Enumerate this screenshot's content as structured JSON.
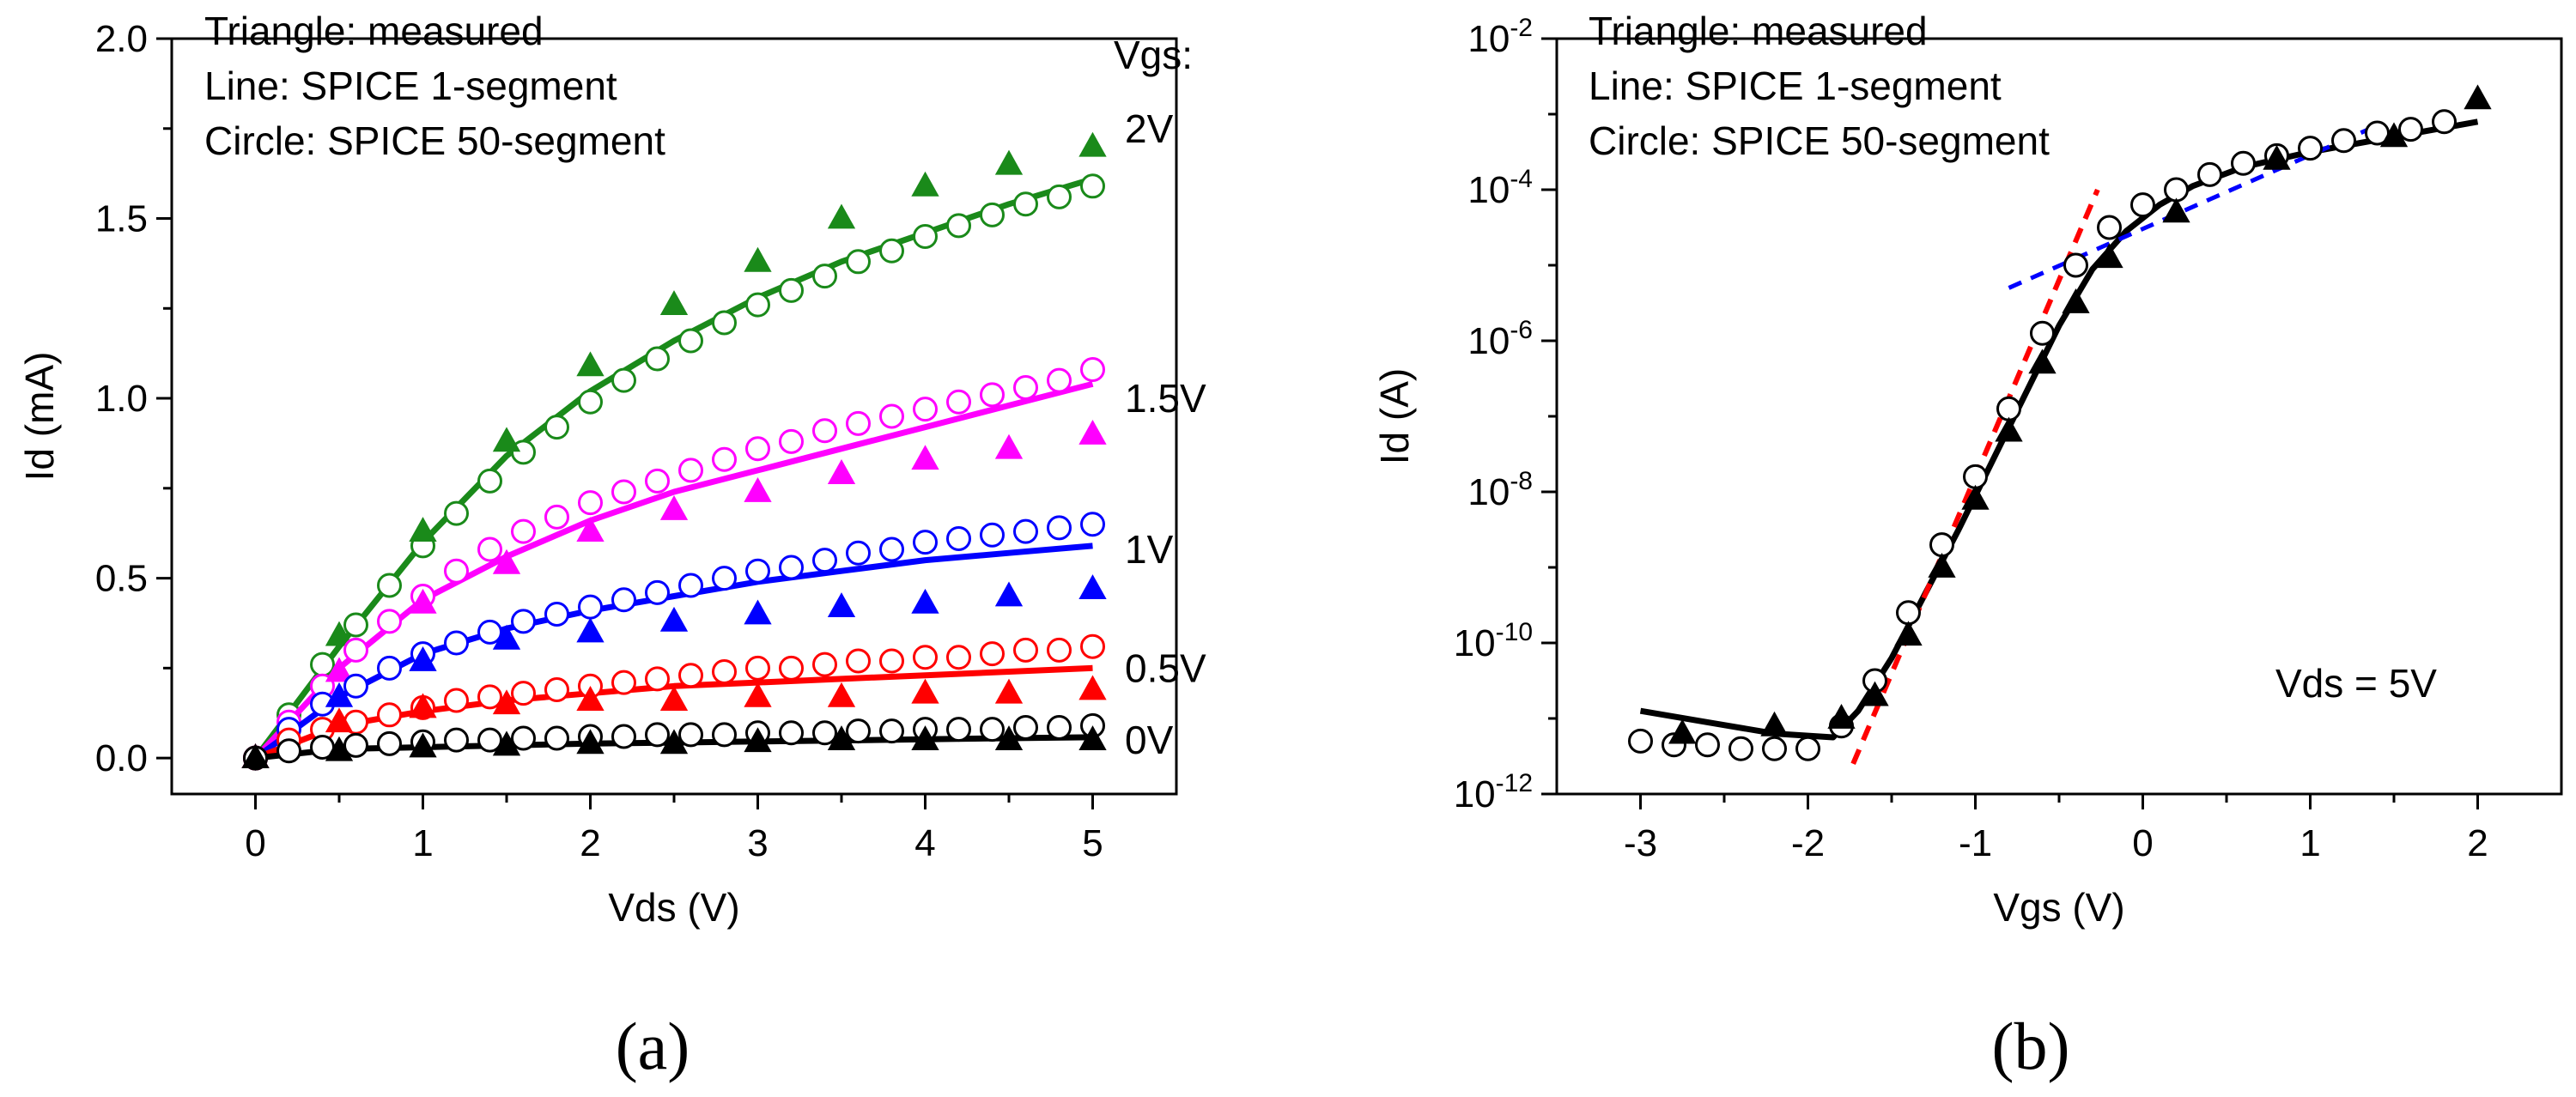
{
  "chart_data": [
    {
      "type": "line",
      "panel_label": "(a)",
      "xlabel": "Vds (V)",
      "ylabel": "Id (mA)",
      "xlim": [
        -0.5,
        5.5
      ],
      "ylim": [
        -0.1,
        2.0
      ],
      "xticks": [
        "0",
        "1",
        "2",
        "3",
        "4",
        "5"
      ],
      "yticks": [
        "0.0",
        "0.5",
        "1.0",
        "1.5",
        "2.0"
      ],
      "annotations": [
        "Triangle: measured",
        "Line: SPICE 1-segment",
        "Circle: SPICE 50-segment"
      ],
      "legend_title": "Vgs:",
      "series": [
        {
          "name": "2V",
          "color": "#1a8a1a",
          "measured": {
            "x": [
              0,
              0.5,
              1,
              1.5,
              2,
              2.5,
              3,
              3.5,
              4,
              4.5,
              5
            ],
            "y": [
              0,
              0.34,
              0.63,
              0.88,
              1.09,
              1.26,
              1.38,
              1.5,
              1.59,
              1.65,
              1.7
            ]
          },
          "line": {
            "x": [
              0,
              0.5,
              1,
              1.5,
              2,
              2.5,
              3,
              3.5,
              4,
              4.5,
              5
            ],
            "y": [
              0,
              0.31,
              0.6,
              0.84,
              1.02,
              1.16,
              1.28,
              1.38,
              1.46,
              1.54,
              1.61
            ]
          },
          "circles": {
            "x": [
              0,
              0.2,
              0.4,
              0.6,
              0.8,
              1,
              1.2,
              1.4,
              1.6,
              1.8,
              2,
              2.2,
              2.4,
              2.6,
              2.8,
              3,
              3.2,
              3.4,
              3.6,
              3.8,
              4,
              4.2,
              4.4,
              4.6,
              4.8,
              5
            ],
            "y": [
              0,
              0.12,
              0.26,
              0.37,
              0.48,
              0.59,
              0.68,
              0.77,
              0.85,
              0.92,
              0.99,
              1.05,
              1.11,
              1.16,
              1.21,
              1.26,
              1.3,
              1.34,
              1.38,
              1.41,
              1.45,
              1.48,
              1.51,
              1.54,
              1.56,
              1.59
            ]
          }
        },
        {
          "name": "1.5V",
          "color": "#ff00ff",
          "measured": {
            "x": [
              0,
              0.5,
              1,
              1.5,
              2,
              2.5,
              3,
              3.5,
              4,
              4.5,
              5
            ],
            "y": [
              0,
              0.24,
              0.43,
              0.54,
              0.63,
              0.69,
              0.74,
              0.79,
              0.83,
              0.86,
              0.9
            ]
          },
          "line": {
            "x": [
              0,
              0.5,
              1,
              1.5,
              2,
              2.5,
              3,
              3.5,
              4,
              4.5,
              5
            ],
            "y": [
              0,
              0.25,
              0.44,
              0.56,
              0.66,
              0.74,
              0.8,
              0.86,
              0.92,
              0.98,
              1.04
            ]
          },
          "circles": {
            "x": [
              0,
              0.2,
              0.4,
              0.6,
              0.8,
              1,
              1.2,
              1.4,
              1.6,
              1.8,
              2,
              2.2,
              2.4,
              2.6,
              2.8,
              3,
              3.2,
              3.4,
              3.6,
              3.8,
              4,
              4.2,
              4.4,
              4.6,
              4.8,
              5
            ],
            "y": [
              0,
              0.1,
              0.2,
              0.3,
              0.38,
              0.45,
              0.52,
              0.58,
              0.63,
              0.67,
              0.71,
              0.74,
              0.77,
              0.8,
              0.83,
              0.86,
              0.88,
              0.91,
              0.93,
              0.95,
              0.97,
              0.99,
              1.01,
              1.03,
              1.05,
              1.08
            ]
          }
        },
        {
          "name": "1V",
          "color": "#0000ff",
          "measured": {
            "x": [
              0,
              0.5,
              1,
              1.5,
              2,
              2.5,
              3,
              3.5,
              4,
              4.5,
              5
            ],
            "y": [
              0,
              0.17,
              0.27,
              0.33,
              0.35,
              0.38,
              0.4,
              0.42,
              0.43,
              0.45,
              0.47
            ]
          },
          "line": {
            "x": [
              0,
              0.5,
              1,
              1.5,
              2,
              2.5,
              3,
              3.5,
              4,
              4.5,
              5
            ],
            "y": [
              0,
              0.17,
              0.29,
              0.36,
              0.41,
              0.45,
              0.49,
              0.52,
              0.55,
              0.57,
              0.59
            ]
          },
          "circles": {
            "x": [
              0,
              0.2,
              0.4,
              0.6,
              0.8,
              1,
              1.2,
              1.4,
              1.6,
              1.8,
              2,
              2.2,
              2.4,
              2.6,
              2.8,
              3,
              3.2,
              3.4,
              3.6,
              3.8,
              4,
              4.2,
              4.4,
              4.6,
              4.8,
              5
            ],
            "y": [
              0,
              0.08,
              0.15,
              0.2,
              0.25,
              0.29,
              0.32,
              0.35,
              0.38,
              0.4,
              0.42,
              0.44,
              0.46,
              0.48,
              0.5,
              0.52,
              0.53,
              0.55,
              0.57,
              0.58,
              0.6,
              0.61,
              0.62,
              0.63,
              0.64,
              0.65
            ]
          }
        },
        {
          "name": "0.5V",
          "color": "#ff0000",
          "measured": {
            "x": [
              0,
              0.5,
              1,
              1.5,
              2,
              2.5,
              3,
              3.5,
              4,
              4.5,
              5
            ],
            "y": [
              0,
              0.1,
              0.14,
              0.15,
              0.16,
              0.16,
              0.17,
              0.17,
              0.18,
              0.18,
              0.19
            ]
          },
          "line": {
            "x": [
              0,
              0.5,
              1,
              1.5,
              2,
              2.5,
              3,
              3.5,
              4,
              4.5,
              5
            ],
            "y": [
              0,
              0.09,
              0.13,
              0.16,
              0.18,
              0.2,
              0.21,
              0.22,
              0.23,
              0.24,
              0.25
            ]
          },
          "circles": {
            "x": [
              0,
              0.2,
              0.4,
              0.6,
              0.8,
              1,
              1.2,
              1.4,
              1.6,
              1.8,
              2,
              2.2,
              2.4,
              2.6,
              2.8,
              3,
              3.2,
              3.4,
              3.6,
              3.8,
              4,
              4.2,
              4.4,
              4.6,
              4.8,
              5
            ],
            "y": [
              0,
              0.05,
              0.08,
              0.1,
              0.12,
              0.14,
              0.16,
              0.17,
              0.18,
              0.19,
              0.2,
              0.21,
              0.22,
              0.23,
              0.24,
              0.25,
              0.25,
              0.26,
              0.27,
              0.27,
              0.28,
              0.28,
              0.29,
              0.3,
              0.3,
              0.31
            ]
          }
        },
        {
          "name": "0V",
          "color": "#000000",
          "measured": {
            "x": [
              0,
              0.5,
              1,
              1.5,
              2,
              2.5,
              3,
              3.5,
              4,
              4.5,
              5
            ],
            "y": [
              0,
              0.02,
              0.03,
              0.035,
              0.04,
              0.04,
              0.045,
              0.05,
              0.05,
              0.05,
              0.05
            ]
          },
          "line": {
            "x": [
              0,
              0.5,
              1,
              1.5,
              2,
              2.5,
              3,
              3.5,
              4,
              4.5,
              5
            ],
            "y": [
              0,
              0.025,
              0.03,
              0.035,
              0.04,
              0.043,
              0.046,
              0.049,
              0.052,
              0.055,
              0.058
            ]
          },
          "circles": {
            "x": [
              0,
              0.2,
              0.4,
              0.6,
              0.8,
              1,
              1.2,
              1.4,
              1.6,
              1.8,
              2,
              2.2,
              2.4,
              2.6,
              2.8,
              3,
              3.2,
              3.4,
              3.6,
              3.8,
              4,
              4.2,
              4.4,
              4.6,
              4.8,
              5
            ],
            "y": [
              0,
              0.02,
              0.03,
              0.035,
              0.04,
              0.045,
              0.05,
              0.05,
              0.055,
              0.055,
              0.06,
              0.06,
              0.065,
              0.065,
              0.065,
              0.07,
              0.07,
              0.07,
              0.075,
              0.075,
              0.08,
              0.08,
              0.08,
              0.085,
              0.085,
              0.09
            ]
          }
        }
      ]
    },
    {
      "type": "line",
      "panel_label": "(b)",
      "xlabel": "Vgs (V)",
      "ylabel": "Id (A)",
      "yscale": "log",
      "xlim": [
        -3.5,
        2.5
      ],
      "ylim_exp": [
        -12,
        -2
      ],
      "xticks": [
        "-3",
        "-2",
        "-1",
        "0",
        "1",
        "2"
      ],
      "ytick_exponents": [
        "-12",
        "-10",
        "-8",
        "-6",
        "-4",
        "-2"
      ],
      "annotations": [
        "Triangle: measured",
        "Line: SPICE 1-segment",
        "Circle: SPICE 50-segment"
      ],
      "condition_label": "Vds = 5V",
      "line_black": {
        "x": [
          -3,
          -2.6,
          -2.2,
          -1.85,
          -1.7,
          -1.5,
          -1.3,
          -1.1,
          -0.9,
          -0.7,
          -0.5,
          -0.3,
          -0.1,
          0.1,
          0.3,
          0.6,
          1.0,
          1.5,
          2.0
        ],
        "log_y": [
          -10.9,
          -11.05,
          -11.2,
          -11.25,
          -10.9,
          -10.2,
          -9.35,
          -8.5,
          -7.6,
          -6.7,
          -5.8,
          -5.05,
          -4.55,
          -4.2,
          -3.95,
          -3.7,
          -3.5,
          -3.3,
          -3.1
        ]
      },
      "measured": {
        "x": [
          -2.75,
          -2.2,
          -1.8,
          -1.6,
          -1.4,
          -1.2,
          -1.0,
          -0.8,
          -0.6,
          -0.4,
          -0.2,
          0.2,
          0.8,
          1.5,
          2.0
        ],
        "log_y": [
          -11.2,
          -11.1,
          -11.0,
          -10.7,
          -9.9,
          -9.0,
          -8.1,
          -7.2,
          -6.3,
          -5.5,
          -4.9,
          -4.3,
          -3.6,
          -3.3,
          -2.8
        ]
      },
      "circles": {
        "x": [
          -3.0,
          -2.8,
          -2.6,
          -2.4,
          -2.2,
          -2.0,
          -1.8,
          -1.6,
          -1.4,
          -1.2,
          -1.0,
          -0.8,
          -0.6,
          -0.4,
          -0.2,
          0,
          0.2,
          0.4,
          0.6,
          0.8,
          1.0,
          1.2,
          1.4,
          1.6,
          1.8
        ],
        "log_y": [
          -11.3,
          -11.35,
          -11.35,
          -11.4,
          -11.4,
          -11.4,
          -11.1,
          -10.5,
          -9.6,
          -8.7,
          -7.8,
          -6.9,
          -5.9,
          -5.0,
          -4.5,
          -4.2,
          -4.0,
          -3.8,
          -3.65,
          -3.55,
          -3.45,
          -3.35,
          -3.25,
          -3.2,
          -3.1
        ]
      },
      "dashed_red": {
        "x": [
          -1.73,
          -0.27
        ],
        "log_y": [
          -11.6,
          -4.0
        ]
      },
      "dashed_blue": {
        "x": [
          -0.8,
          1.35
        ],
        "log_y": [
          -5.3,
          -3.2
        ]
      }
    }
  ]
}
